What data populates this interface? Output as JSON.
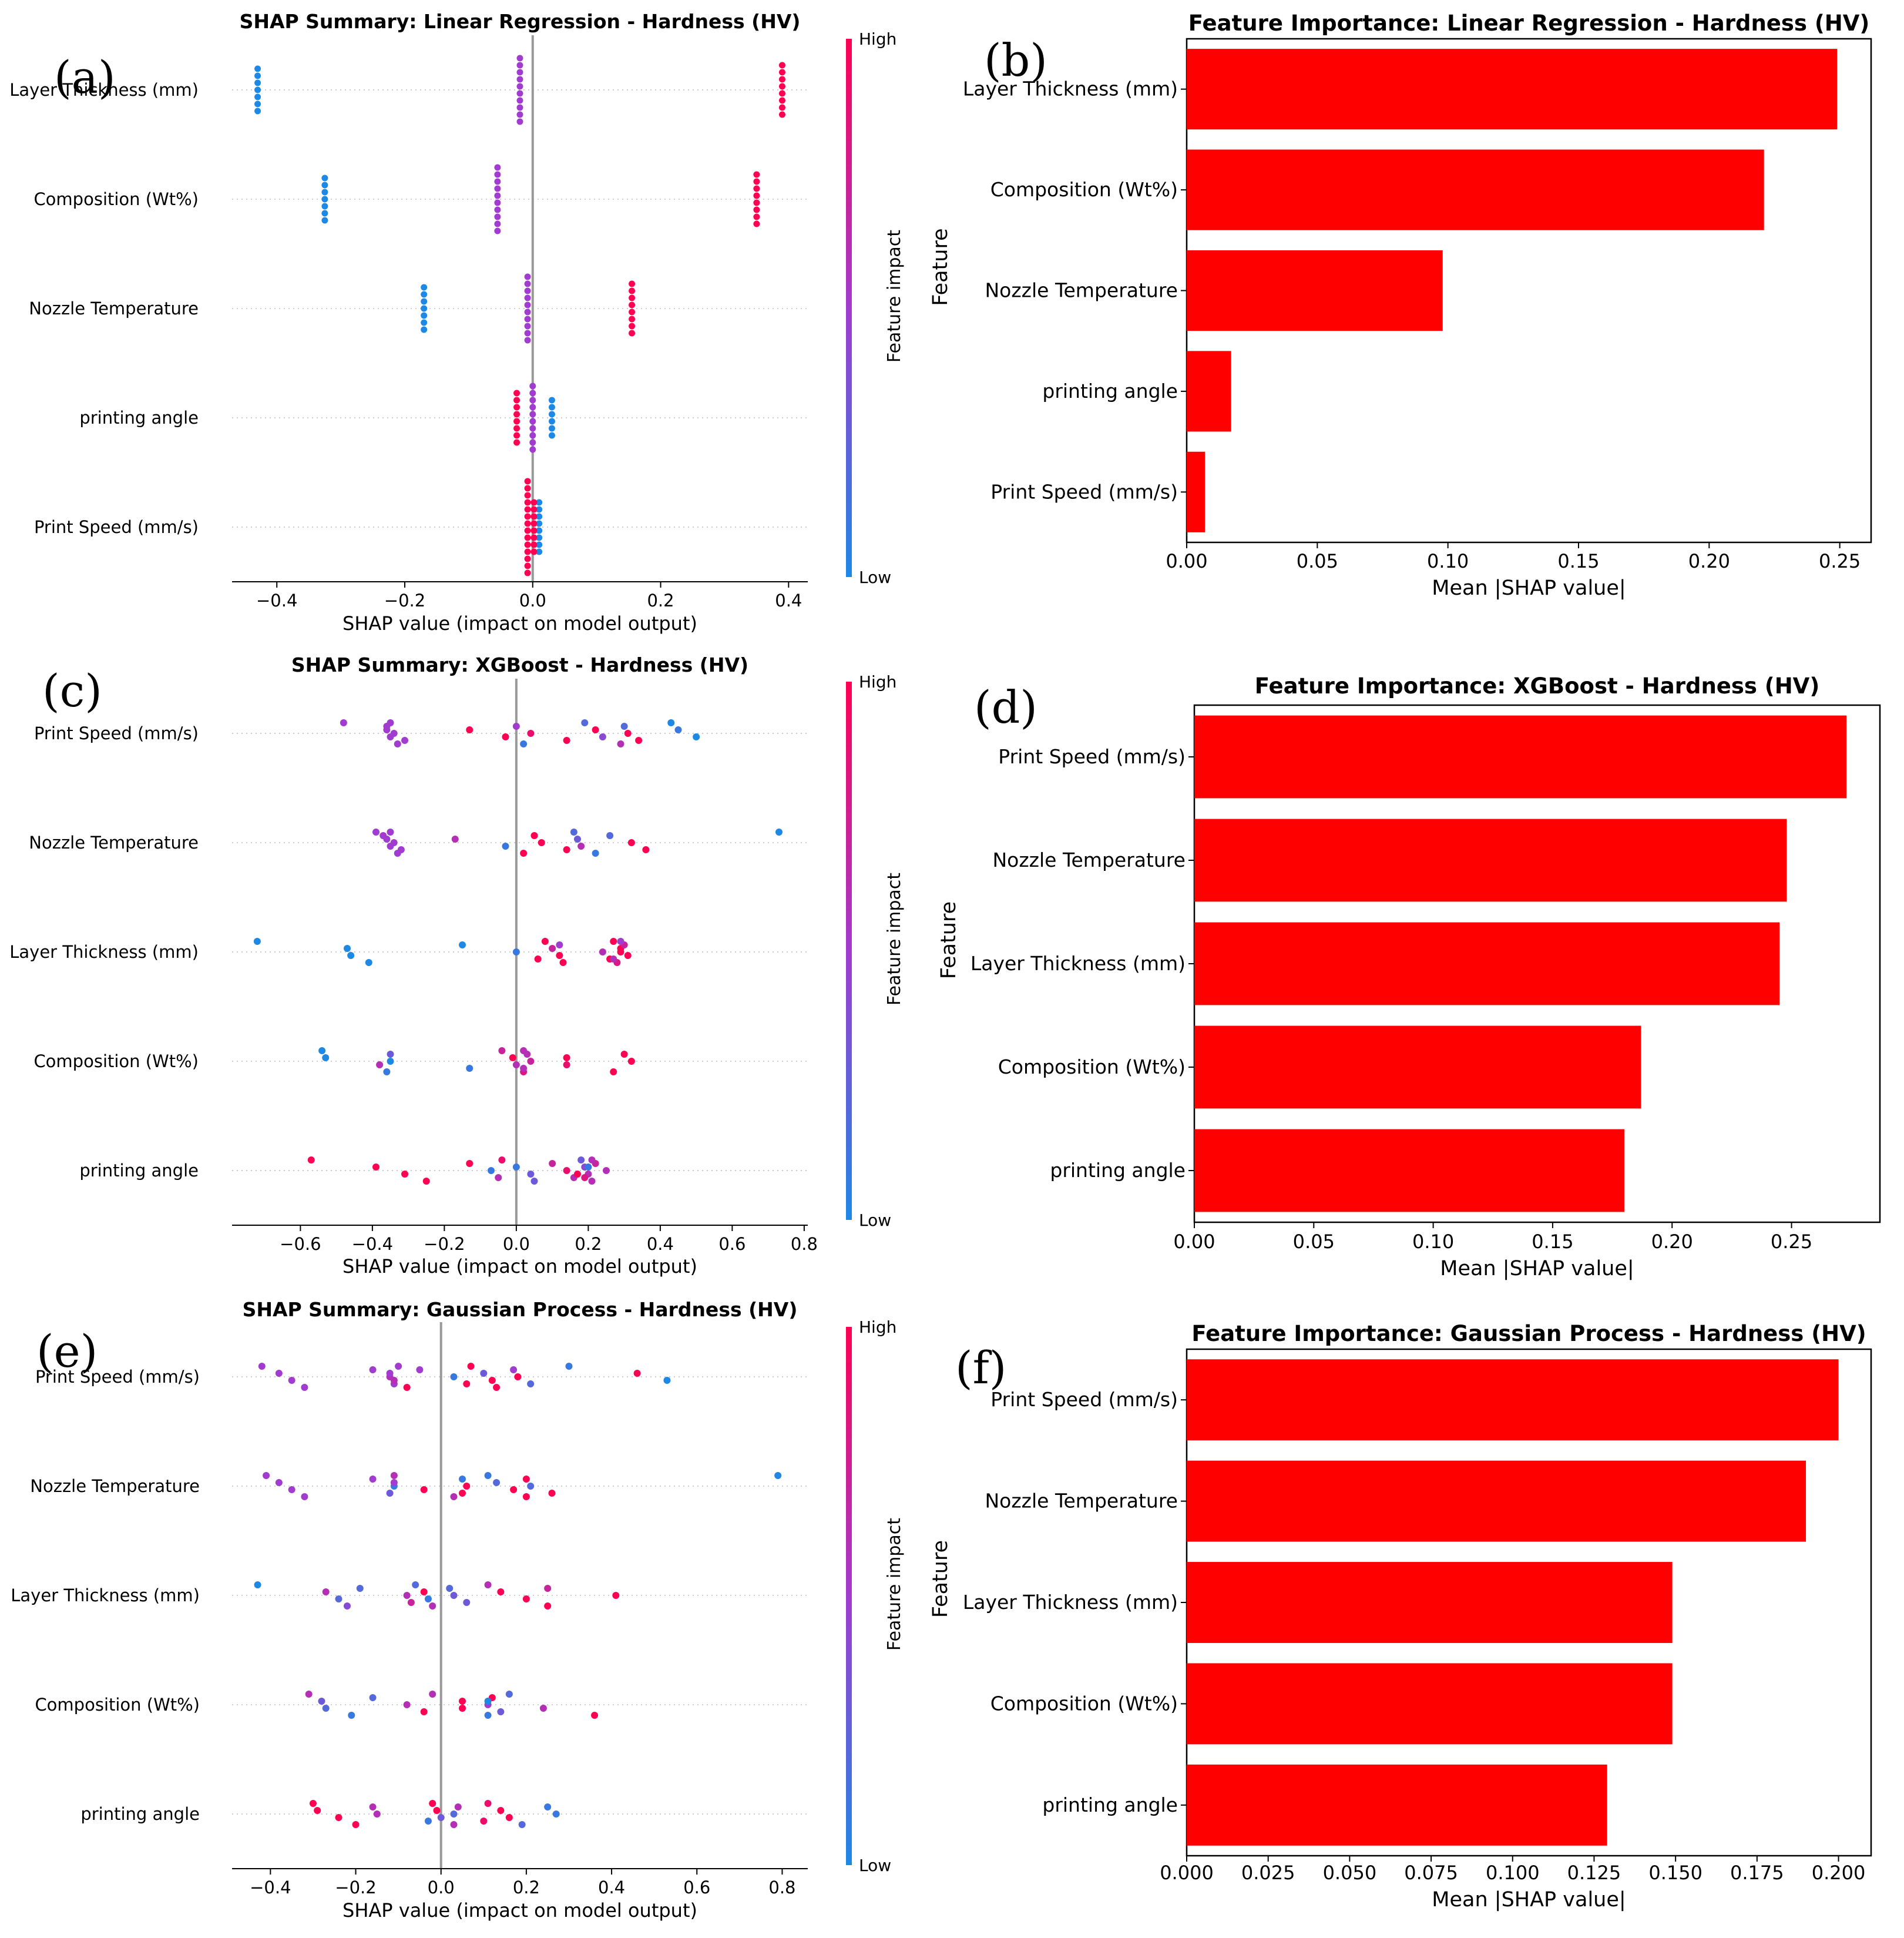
{
  "figure": {
    "panel_labels": [
      "(a)",
      "(b)",
      "(c)",
      "(d)",
      "(e)",
      "(f)"
    ]
  },
  "colorbar": {
    "high": "High",
    "low": "Low",
    "title": "Feature impact"
  },
  "colors": {
    "bar": "#ff0000",
    "low": "#1e88e5",
    "high": "#ff0052",
    "zero_line": "#999999"
  },
  "chart_data": [
    {
      "id": "a",
      "type": "scatter",
      "subtype": "shap_beeswarm",
      "title": "SHAP Summary: Linear Regression - Hardness (HV)",
      "xlabel": "SHAP value (impact on model output)",
      "xlim": [
        -0.47,
        0.43
      ],
      "xticks": [
        -0.4,
        -0.2,
        0.0,
        0.2,
        0.4
      ],
      "xtick_labels": [
        "−0.4",
        "−0.2",
        "0.0",
        "0.2",
        "0.4"
      ],
      "features": [
        "Layer Thickness (mm)",
        "Composition (Wt%)",
        "Nozzle Temperature",
        "printing angle",
        "Print Speed (mm/s)"
      ],
      "points": [
        [
          [
            -0.43,
            0
          ],
          [
            -0.02,
            0.5
          ],
          [
            0.39,
            1
          ]
        ],
        [
          [
            -0.325,
            0
          ],
          [
            -0.055,
            0.5
          ],
          [
            0.35,
            1
          ]
        ],
        [
          [
            -0.17,
            0
          ],
          [
            -0.008,
            0.5
          ],
          [
            0.155,
            1
          ]
        ],
        [
          [
            0.03,
            0
          ],
          [
            0.0,
            0.5
          ],
          [
            -0.025,
            1
          ]
        ],
        [
          [
            0.01,
            0
          ],
          [
            -0.008,
            1
          ],
          [
            0.002,
            1
          ]
        ]
      ],
      "stack_sizes": [
        [
          7,
          10,
          8
        ],
        [
          7,
          10,
          8
        ],
        [
          7,
          10,
          8
        ],
        [
          6,
          10,
          8
        ],
        [
          8,
          14,
          8
        ]
      ]
    },
    {
      "id": "b",
      "type": "bar",
      "orientation": "horizontal",
      "title": "Feature Importance: Linear Regression - Hardness (HV)",
      "xlabel": "Mean |SHAP value|",
      "ylabel": "Feature",
      "categories": [
        "Layer Thickness (mm)",
        "Composition (Wt%)",
        "Nozzle Temperature",
        "printing angle",
        "Print Speed (mm/s)"
      ],
      "values": [
        0.249,
        0.221,
        0.098,
        0.017,
        0.007
      ],
      "xlim": [
        0,
        0.262
      ],
      "xticks": [
        0,
        0.05,
        0.1,
        0.15,
        0.2,
        0.25
      ],
      "xtick_labels": [
        "0.00",
        "0.05",
        "0.10",
        "0.15",
        "0.20",
        "0.25"
      ]
    },
    {
      "id": "c",
      "type": "scatter",
      "subtype": "shap_beeswarm",
      "title": "SHAP Summary: XGBoost - Hardness (HV)",
      "xlabel": "SHAP value (impact on model output)",
      "xlim": [
        -0.79,
        0.81
      ],
      "xticks": [
        -0.6,
        -0.4,
        -0.2,
        0.0,
        0.2,
        0.4,
        0.6,
        0.8
      ],
      "xtick_labels": [
        "−0.6",
        "−0.4",
        "−0.2",
        "0.0",
        "0.2",
        "0.4",
        "0.6",
        "0.8"
      ],
      "features": [
        "Print Speed (mm/s)",
        "Nozzle Temperature",
        "Layer Thickness (mm)",
        "Composition (Wt%)",
        "printing angle"
      ],
      "points": [
        [
          [
            -0.48,
            0.5
          ],
          [
            -0.36,
            0.5
          ],
          [
            -0.35,
            0.5
          ],
          [
            -0.33,
            0.5
          ],
          [
            -0.36,
            0.5
          ],
          [
            -0.34,
            0.5
          ],
          [
            -0.31,
            0.5
          ],
          [
            -0.35,
            0.5
          ],
          [
            -0.13,
            1
          ],
          [
            -0.03,
            1
          ],
          [
            0.02,
            0.1
          ],
          [
            0.0,
            0.5
          ],
          [
            0.04,
            0.9
          ],
          [
            0.14,
            1
          ],
          [
            0.19,
            0.2
          ],
          [
            0.22,
            1
          ],
          [
            0.24,
            0.4
          ],
          [
            0.29,
            0.6
          ],
          [
            0.3,
            0.2
          ],
          [
            0.31,
            1
          ],
          [
            0.34,
            1
          ],
          [
            0.43,
            0
          ],
          [
            0.45,
            0.1
          ],
          [
            0.5,
            0
          ]
        ],
        [
          [
            -0.39,
            0.5
          ],
          [
            -0.36,
            0.5
          ],
          [
            -0.35,
            0.5
          ],
          [
            -0.33,
            0.5
          ],
          [
            -0.37,
            0.5
          ],
          [
            -0.34,
            0.5
          ],
          [
            -0.32,
            0.5
          ],
          [
            -0.35,
            0.5
          ],
          [
            -0.17,
            0.6
          ],
          [
            -0.03,
            0.1
          ],
          [
            0.02,
            1
          ],
          [
            0.05,
            1
          ],
          [
            0.07,
            1
          ],
          [
            0.14,
            1
          ],
          [
            0.16,
            0.2
          ],
          [
            0.17,
            0.3
          ],
          [
            0.18,
            0.6
          ],
          [
            0.22,
            0.1
          ],
          [
            0.26,
            0.2
          ],
          [
            0.32,
            1
          ],
          [
            0.36,
            1
          ],
          [
            0.73,
            0
          ]
        ],
        [
          [
            -0.72,
            0
          ],
          [
            -0.47,
            0
          ],
          [
            -0.46,
            0
          ],
          [
            -0.41,
            0
          ],
          [
            -0.15,
            0
          ],
          [
            0.0,
            0.1
          ],
          [
            0.06,
            1
          ],
          [
            0.08,
            1
          ],
          [
            0.1,
            0.7
          ],
          [
            0.12,
            1
          ],
          [
            0.13,
            1
          ],
          [
            0.12,
            0.5
          ],
          [
            0.24,
            0.6
          ],
          [
            0.26,
            1
          ],
          [
            0.27,
            1
          ],
          [
            0.29,
            1
          ],
          [
            0.31,
            1
          ],
          [
            0.28,
            0.8
          ],
          [
            0.3,
            0.7
          ],
          [
            0.29,
            1
          ],
          [
            0.27,
            0.6
          ],
          [
            0.29,
            0.5
          ]
        ],
        [
          [
            -0.54,
            0
          ],
          [
            -0.53,
            0
          ],
          [
            -0.38,
            0.6
          ],
          [
            -0.36,
            0.1
          ],
          [
            -0.35,
            0.3
          ],
          [
            -0.35,
            0
          ],
          [
            -0.13,
            0.1
          ],
          [
            -0.04,
            0.7
          ],
          [
            -0.01,
            1
          ],
          [
            0.0,
            0.6
          ],
          [
            0.02,
            0.8
          ],
          [
            0.03,
            0.6
          ],
          [
            0.04,
            0.7
          ],
          [
            0.02,
            0.6
          ],
          [
            0.02,
            0.6
          ],
          [
            0.14,
            1
          ],
          [
            0.14,
            0.9
          ],
          [
            0.27,
            1
          ],
          [
            0.3,
            1
          ],
          [
            0.32,
            1
          ]
        ],
        [
          [
            -0.57,
            1
          ],
          [
            -0.39,
            1
          ],
          [
            -0.31,
            1
          ],
          [
            -0.25,
            1
          ],
          [
            -0.13,
            1
          ],
          [
            -0.07,
            0.1
          ],
          [
            -0.05,
            0.6
          ],
          [
            -0.04,
            0.9
          ],
          [
            0.0,
            0.1
          ],
          [
            0.04,
            0.3
          ],
          [
            0.05,
            0.3
          ],
          [
            0.1,
            0.7
          ],
          [
            0.14,
            0.9
          ],
          [
            0.16,
            0.6
          ],
          [
            0.18,
            0.3
          ],
          [
            0.19,
            0.4
          ],
          [
            0.2,
            0.6
          ],
          [
            0.21,
            0.6
          ],
          [
            0.22,
            0.7
          ],
          [
            0.25,
            0.6
          ],
          [
            0.19,
            0.8
          ],
          [
            0.21,
            0.6
          ],
          [
            0.2,
            0.1
          ],
          [
            0.17,
            1
          ]
        ]
      ]
    },
    {
      "id": "d",
      "type": "bar",
      "orientation": "horizontal",
      "title": "Feature Importance: XGBoost - Hardness (HV)",
      "xlabel": "Mean |SHAP value|",
      "ylabel": "Feature",
      "categories": [
        "Print Speed (mm/s)",
        "Nozzle Temperature",
        "Layer Thickness (mm)",
        "Composition (Wt%)",
        "printing angle"
      ],
      "values": [
        0.273,
        0.248,
        0.245,
        0.187,
        0.18
      ],
      "xlim": [
        0,
        0.287
      ],
      "xticks": [
        0,
        0.05,
        0.1,
        0.15,
        0.2,
        0.25
      ],
      "xtick_labels": [
        "0.00",
        "0.05",
        "0.10",
        "0.15",
        "0.20",
        "0.25"
      ]
    },
    {
      "id": "e",
      "type": "scatter",
      "subtype": "shap_beeswarm",
      "title": "SHAP Summary: Gaussian Process - Hardness (HV)",
      "xlabel": "SHAP value (impact on model output)",
      "xlim": [
        -0.49,
        0.86
      ],
      "xticks": [
        -0.4,
        -0.2,
        0.0,
        0.2,
        0.4,
        0.6,
        0.8
      ],
      "xtick_labels": [
        "−0.4",
        "−0.2",
        "0.0",
        "0.2",
        "0.4",
        "0.6",
        "0.8"
      ],
      "features": [
        "Print Speed (mm/s)",
        "Nozzle Temperature",
        "Layer Thickness (mm)",
        "Composition (Wt%)",
        "printing angle"
      ],
      "points": [
        [
          [
            -0.42,
            0.5
          ],
          [
            -0.38,
            0.5
          ],
          [
            -0.35,
            0.5
          ],
          [
            -0.32,
            0.5
          ],
          [
            -0.16,
            0.5
          ],
          [
            -0.12,
            0.6
          ],
          [
            -0.11,
            0.5
          ],
          [
            -0.1,
            0.5
          ],
          [
            -0.12,
            0.5
          ],
          [
            -0.11,
            0.6
          ],
          [
            -0.08,
            1
          ],
          [
            -0.05,
            0.5
          ],
          [
            0.03,
            0.1
          ],
          [
            0.06,
            1
          ],
          [
            0.07,
            1
          ],
          [
            0.1,
            0.3
          ],
          [
            0.12,
            1
          ],
          [
            0.13,
            1
          ],
          [
            0.17,
            0.5
          ],
          [
            0.18,
            1
          ],
          [
            0.21,
            0.2
          ],
          [
            0.3,
            0.1
          ],
          [
            0.46,
            1
          ],
          [
            0.53,
            0
          ]
        ],
        [
          [
            -0.41,
            0.5
          ],
          [
            -0.38,
            0.5
          ],
          [
            -0.35,
            0.5
          ],
          [
            -0.32,
            0.5
          ],
          [
            -0.16,
            0.5
          ],
          [
            -0.11,
            0.1
          ],
          [
            -0.12,
            0.3
          ],
          [
            -0.11,
            0.6
          ],
          [
            -0.11,
            0.5
          ],
          [
            -0.04,
            1
          ],
          [
            0.03,
            0.6
          ],
          [
            0.05,
            0.1
          ],
          [
            0.06,
            1
          ],
          [
            0.05,
            1
          ],
          [
            0.11,
            0.1
          ],
          [
            0.13,
            0.2
          ],
          [
            0.17,
            1
          ],
          [
            0.2,
            1
          ],
          [
            0.2,
            1
          ],
          [
            0.21,
            0.2
          ],
          [
            0.26,
            1
          ],
          [
            0.79,
            0
          ]
        ],
        [
          [
            -0.43,
            0
          ],
          [
            -0.27,
            0.6
          ],
          [
            -0.24,
            0.2
          ],
          [
            -0.22,
            0.4
          ],
          [
            -0.19,
            0.2
          ],
          [
            -0.08,
            0.6
          ],
          [
            -0.07,
            0.7
          ],
          [
            -0.06,
            0.2
          ],
          [
            -0.04,
            1
          ],
          [
            -0.03,
            0.1
          ],
          [
            -0.02,
            0.6
          ],
          [
            0.02,
            0.2
          ],
          [
            0.03,
            0.3
          ],
          [
            0.06,
            0.3
          ],
          [
            0.11,
            0.6
          ],
          [
            0.14,
            1
          ],
          [
            0.2,
            1
          ],
          [
            0.25,
            1
          ],
          [
            0.25,
            0.7
          ],
          [
            0.41,
            1
          ]
        ],
        [
          [
            -0.31,
            0.6
          ],
          [
            -0.28,
            0.3
          ],
          [
            -0.27,
            0.2
          ],
          [
            -0.21,
            0.1
          ],
          [
            -0.16,
            0.2
          ],
          [
            -0.08,
            0.6
          ],
          [
            -0.04,
            1
          ],
          [
            -0.02,
            0.6
          ],
          [
            0.05,
            1
          ],
          [
            0.05,
            1
          ],
          [
            0.11,
            0.1
          ],
          [
            0.12,
            1
          ],
          [
            0.11,
            0.5
          ],
          [
            0.14,
            0.3
          ],
          [
            0.16,
            0.2
          ],
          [
            0.11,
            0
          ],
          [
            0.24,
            0.6
          ],
          [
            0.36,
            1
          ]
        ],
        [
          [
            -0.3,
            1
          ],
          [
            -0.29,
            1
          ],
          [
            -0.24,
            1
          ],
          [
            -0.2,
            1
          ],
          [
            -0.16,
            0.6
          ],
          [
            -0.15,
            0.6
          ],
          [
            -0.03,
            0.1
          ],
          [
            -0.02,
            1
          ],
          [
            -0.01,
            1
          ],
          [
            0.0,
            0.3
          ],
          [
            0.03,
            0.6
          ],
          [
            0.04,
            0.6
          ],
          [
            0.03,
            0.2
          ],
          [
            0.1,
            0.9
          ],
          [
            0.11,
            0.9
          ],
          [
            0.14,
            1
          ],
          [
            0.16,
            1
          ],
          [
            0.19,
            0.2
          ],
          [
            0.25,
            0.1
          ],
          [
            0.27,
            0.1
          ]
        ]
      ]
    },
    {
      "id": "f",
      "type": "bar",
      "orientation": "horizontal",
      "title": "Feature Importance: Gaussian Process - Hardness (HV)",
      "xlabel": "Mean |SHAP value|",
      "ylabel": "Feature",
      "categories": [
        "Print Speed (mm/s)",
        "Nozzle Temperature",
        "Layer Thickness (mm)",
        "Composition (Wt%)",
        "printing angle"
      ],
      "values": [
        0.2,
        0.19,
        0.149,
        0.149,
        0.129
      ],
      "xlim": [
        0,
        0.21
      ],
      "xticks": [
        0,
        0.025,
        0.05,
        0.075,
        0.1,
        0.125,
        0.15,
        0.175,
        0.2
      ],
      "xtick_labels": [
        "0.000",
        "0.025",
        "0.050",
        "0.075",
        "0.100",
        "0.125",
        "0.150",
        "0.175",
        "0.200"
      ]
    }
  ]
}
